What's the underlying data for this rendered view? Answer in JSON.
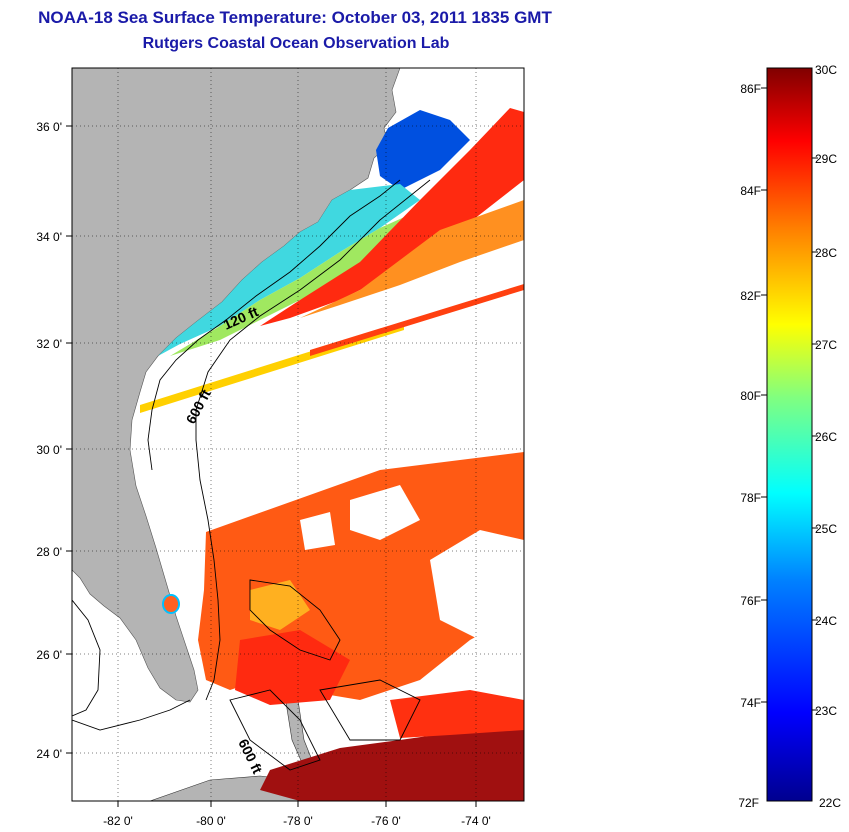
{
  "title": "NOAA-18 Sea Surface Temperature:  October 03, 2011 1835 GMT",
  "subtitle": "Rutgers Coastal Ocean Observation Lab",
  "map": {
    "lon_range": [
      -83,
      -73
    ],
    "lat_range": [
      23,
      37
    ],
    "lon_ticks": [
      "-82 0'",
      "-80 0'",
      "-78 0'",
      "-76 0'",
      "-74 0'"
    ],
    "lat_ticks": [
      "36 0'",
      "34 0'",
      "32 0'",
      "30 0'",
      "28 0'",
      "26 0'",
      "24 0'"
    ],
    "contour_labels": [
      "120 ft",
      "600 ft",
      "600 ft"
    ],
    "land_color": "#b4b4b4"
  },
  "colorbar": {
    "celsius_ticks": [
      "30C",
      "29C",
      "28C",
      "27C",
      "26C",
      "25C",
      "24C",
      "23C",
      "22C"
    ],
    "fahrenheit_ticks": [
      "86F",
      "84F",
      "82F",
      "80F",
      "78F",
      "76F",
      "74F",
      "72F"
    ],
    "colors": [
      "#00008f",
      "#0000ff",
      "#0080ff",
      "#00ffff",
      "#80ff80",
      "#ffff00",
      "#ff8000",
      "#ff0000",
      "#800000"
    ]
  }
}
